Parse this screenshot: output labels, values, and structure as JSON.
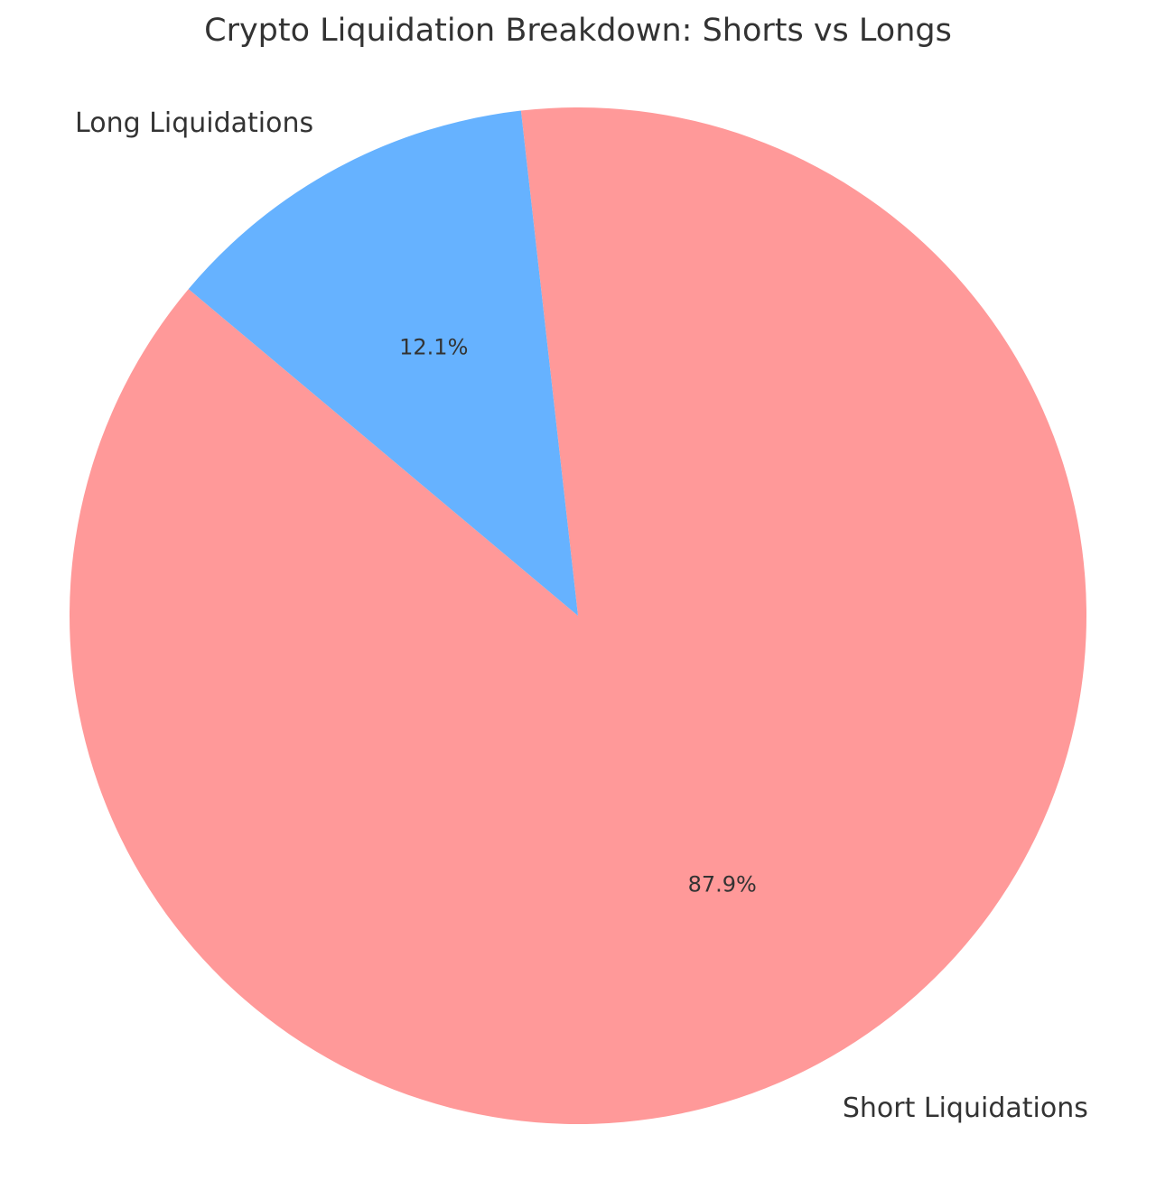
{
  "chart_data": {
    "type": "pie",
    "title": "Crypto Liquidation Breakdown: Shorts vs Longs",
    "slices": [
      {
        "label": "Short Liquidations",
        "value": 87.9,
        "pct_label": "87.9%",
        "color": "#ff9999"
      },
      {
        "label": "Long Liquidations",
        "value": 12.1,
        "pct_label": "12.1%",
        "color": "#66b2ff"
      }
    ],
    "label_color": "#333333"
  }
}
